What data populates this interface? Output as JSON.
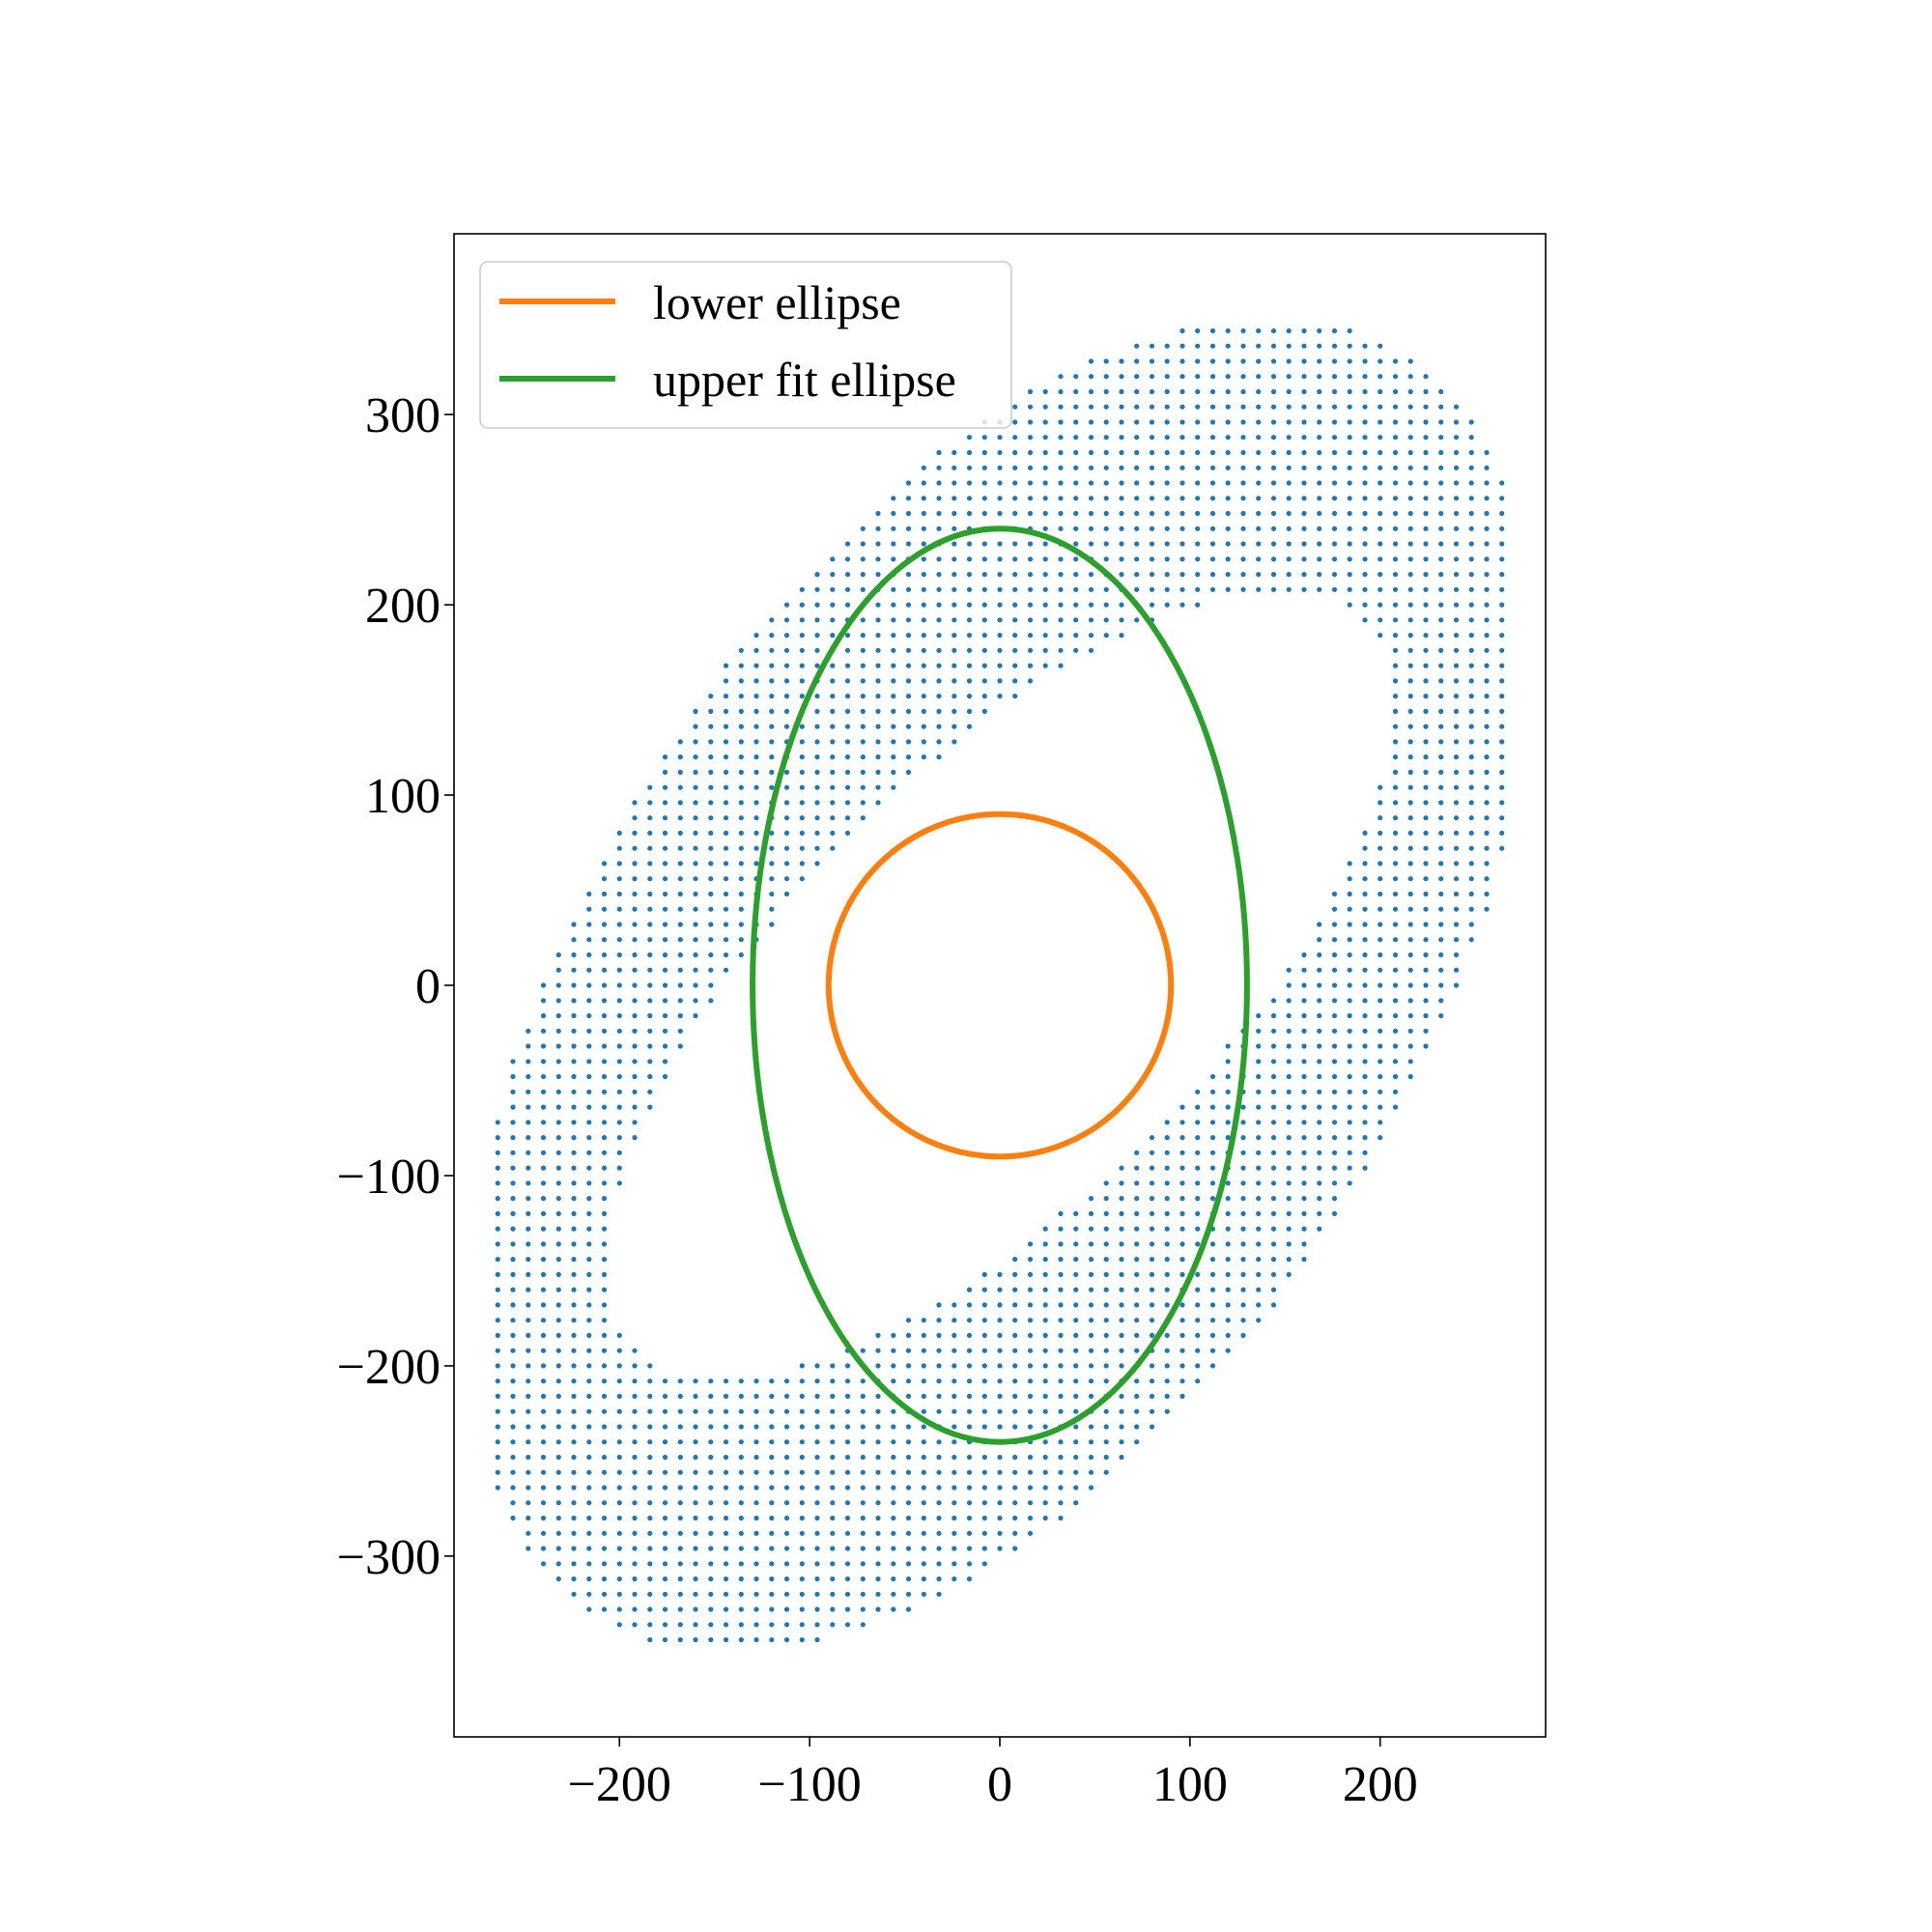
{
  "chart_data": {
    "type": "scatter",
    "title": "",
    "xlabel": "",
    "ylabel": "",
    "xlim": [
      -287,
      287
    ],
    "ylim": [
      -395,
      395
    ],
    "grid": false,
    "legend_placement": "top-left",
    "x_ticks": [
      {
        "value": -200,
        "label": "−200"
      },
      {
        "value": -100,
        "label": "−100"
      },
      {
        "value": 0,
        "label": "0"
      },
      {
        "value": 100,
        "label": "100"
      },
      {
        "value": 200,
        "label": "200"
      }
    ],
    "y_ticks": [
      {
        "value": 300,
        "label": "300"
      },
      {
        "value": 200,
        "label": "200"
      },
      {
        "value": 100,
        "label": "100"
      },
      {
        "value": 0,
        "label": "0"
      },
      {
        "value": -100,
        "label": "−100"
      },
      {
        "value": -200,
        "label": "−200"
      },
      {
        "value": -300,
        "label": "−300"
      }
    ],
    "points": {
      "color": "#1f77b4",
      "grid_spacing": 8,
      "outer_ellipse": {
        "center": [
          0,
          0
        ],
        "semi_major": 395,
        "semi_minor": 215,
        "angle_deg": 57
      },
      "inner_ellipse": {
        "center": [
          0,
          0
        ],
        "semi_major": 270,
        "semi_minor": 110,
        "angle_deg": 45
      },
      "x_extent": [
        -264,
        264
      ],
      "y_extent": [
        -360,
        360
      ]
    },
    "series": [
      {
        "name": "lower ellipse",
        "kind": "line",
        "color": "#ff7f0e",
        "center": [
          0,
          0
        ],
        "rx": 90,
        "ry": 90
      },
      {
        "name": "upper fit ellipse",
        "kind": "line",
        "color": "#2ca02c",
        "center": [
          0,
          0
        ],
        "rx": 130,
        "ry": 240
      }
    ]
  }
}
